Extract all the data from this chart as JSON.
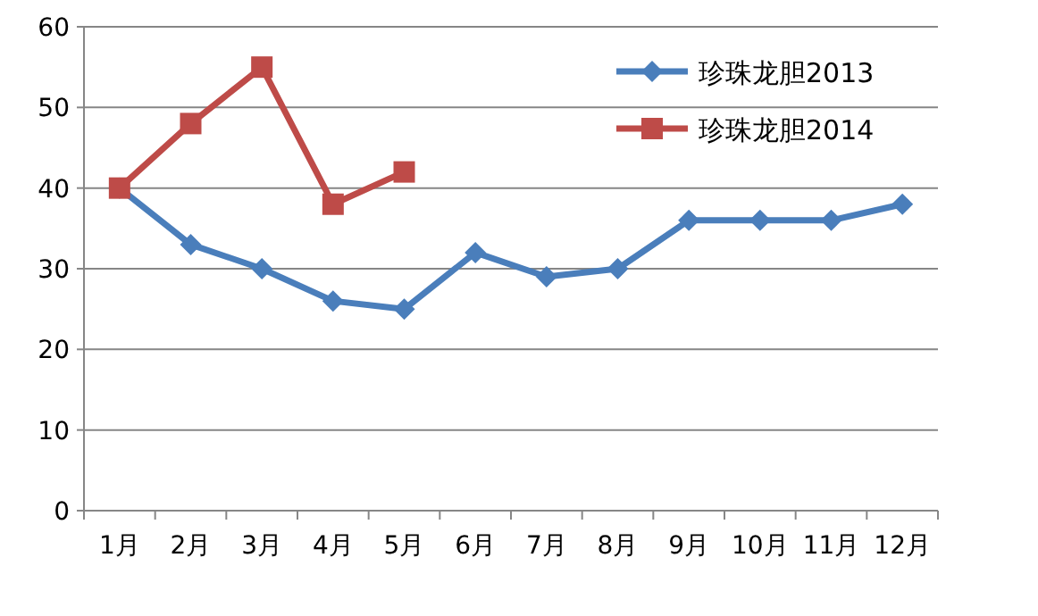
{
  "chart_data": {
    "type": "line",
    "categories": [
      "1月",
      "2月",
      "3月",
      "4月",
      "5月",
      "6月",
      "7月",
      "8月",
      "9月",
      "10月",
      "11月",
      "12月"
    ],
    "series": [
      {
        "name": "珍珠龙胆2013",
        "color": "#4a7ebb",
        "marker": "diamond",
        "values": [
          40,
          33,
          30,
          26,
          25,
          32,
          29,
          30,
          36,
          36,
          36,
          38
        ]
      },
      {
        "name": "珍珠龙胆2014",
        "color": "#be4b48",
        "marker": "square",
        "values": [
          40,
          48,
          55,
          38,
          42,
          null,
          null,
          null,
          null,
          null,
          null,
          null
        ]
      }
    ],
    "ylim": [
      0,
      60
    ],
    "yticks": [
      0,
      10,
      20,
      30,
      40,
      50,
      60
    ],
    "grid": "y",
    "legend": "top right",
    "line_style": "solid"
  }
}
